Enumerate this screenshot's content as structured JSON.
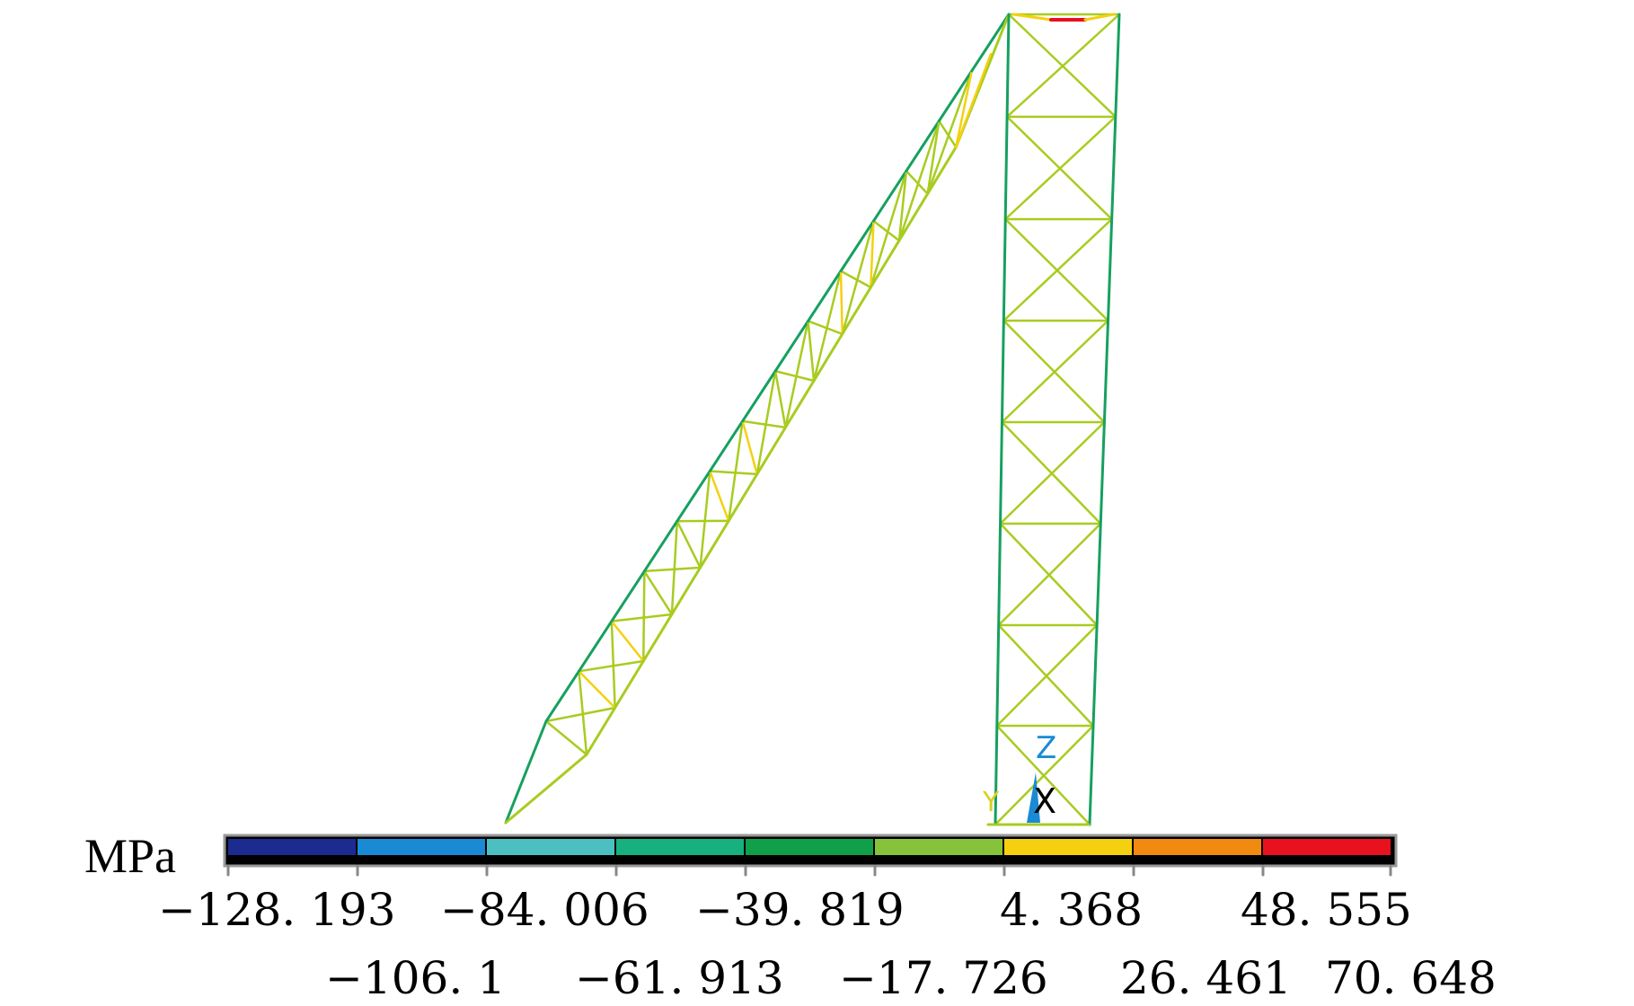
{
  "legend": {
    "unit": "MPa",
    "colors": [
      "#1c2b8f",
      "#1a8ad4",
      "#4cc0c0",
      "#19b080",
      "#10a04a",
      "#86c23a",
      "#f5d010",
      "#f08a10",
      "#e8121e"
    ],
    "labels_top": [
      "−128. 193",
      "−84. 006",
      "−39. 819",
      "4. 368",
      "48. 555"
    ],
    "labels_bottom": [
      "−106. 1",
      "−61. 913",
      "−17. 726",
      "26. 461",
      "70. 648"
    ]
  },
  "triad": {
    "z_label": "Z",
    "y_label": "Y",
    "x_label": "X",
    "z_color": "#1a8ad4",
    "y_color": "#d8d020",
    "x_color": "#000000"
  },
  "structure": {
    "member_color": "#a8cc20",
    "chord_color": "#16a060",
    "tension_color": "#f5d010",
    "peak_color": "#e8121e"
  }
}
